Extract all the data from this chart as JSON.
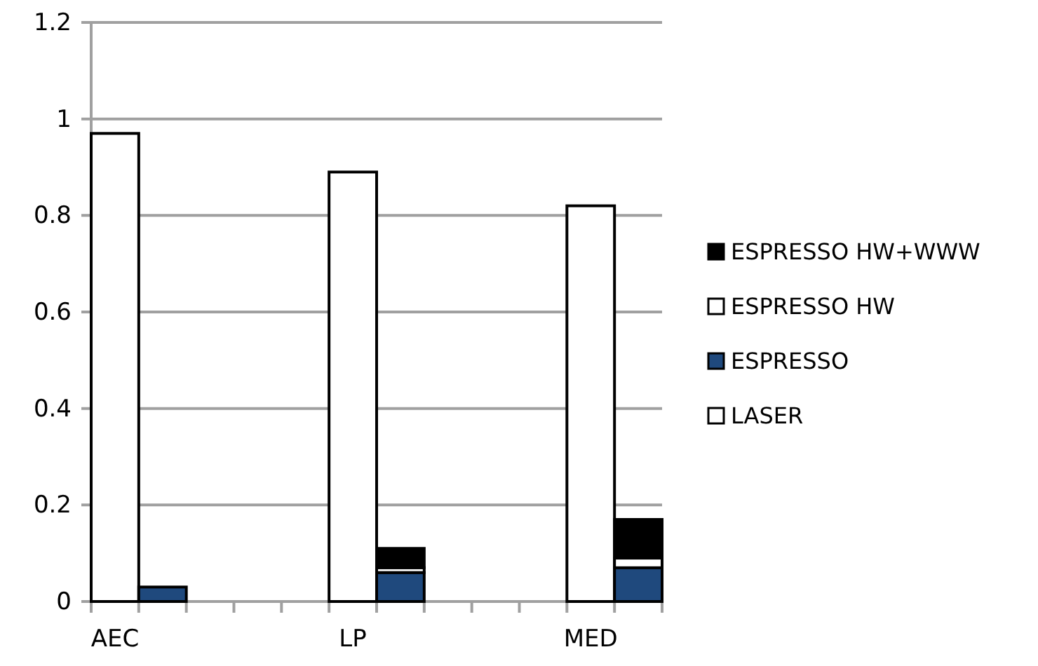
{
  "chart_data": {
    "type": "bar",
    "stacked": true,
    "categories": [
      "AEC",
      null,
      null,
      null,
      null,
      "LP",
      null,
      null,
      null,
      null,
      "MED",
      null
    ],
    "series": [
      {
        "name": "LASER",
        "color": "#ffffff",
        "values": [
          0.97,
          null,
          null,
          null,
          null,
          0.89,
          null,
          null,
          null,
          null,
          0.82,
          null
        ]
      },
      {
        "name": "ESPRESSO",
        "color": "#1f497d",
        "values": [
          null,
          0.03,
          null,
          null,
          null,
          null,
          0.06,
          null,
          null,
          null,
          null,
          0.07
        ]
      },
      {
        "name": "ESPRESSO HW",
        "color": "#ffffff",
        "values": [
          null,
          0,
          null,
          null,
          null,
          null,
          0.01,
          null,
          null,
          null,
          null,
          0.02
        ]
      },
      {
        "name": "ESPRESSO HW+WWW",
        "color": "#000000",
        "values": [
          null,
          0,
          null,
          null,
          null,
          null,
          0.04,
          null,
          null,
          null,
          null,
          0.08
        ]
      }
    ],
    "ylim": [
      0,
      1.2
    ],
    "yticks": [
      0,
      0.2,
      0.4,
      0.6,
      0.8,
      1,
      1.2
    ],
    "grid": "y",
    "legend": "right"
  }
}
